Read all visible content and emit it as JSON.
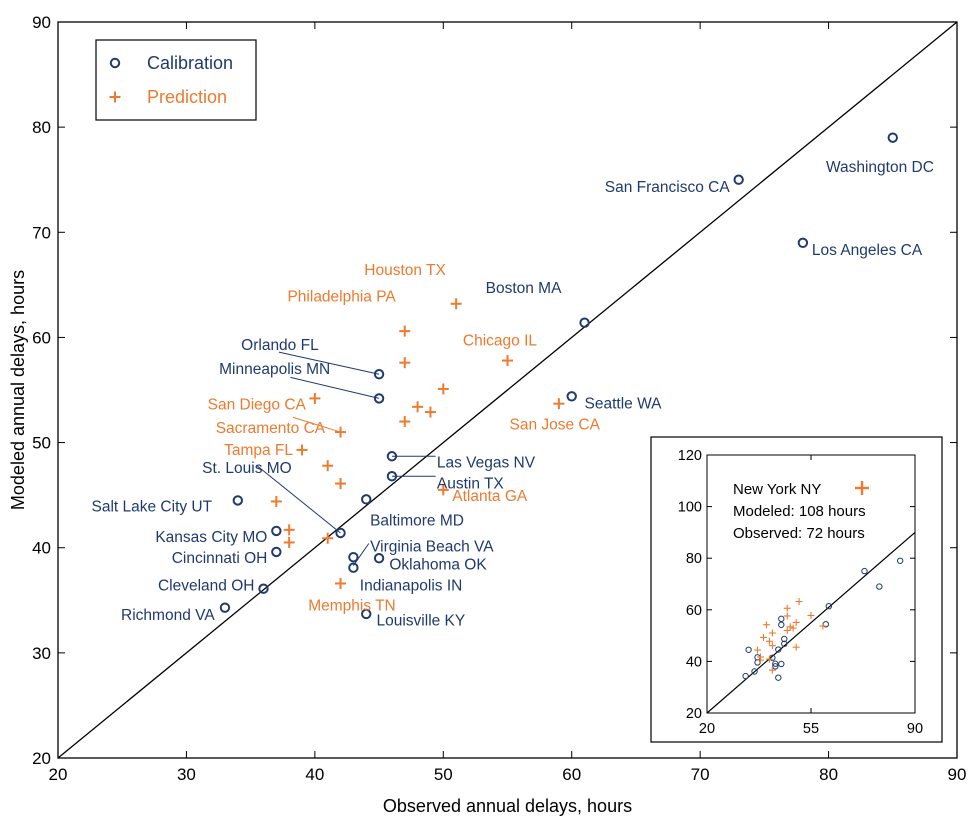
{
  "colors": {
    "calibration": "#1F3A6E",
    "prediction": "#EE7A2E",
    "axis": "#000000"
  },
  "chart_data": [
    {
      "type": "scatter",
      "xlabel": "Observed annual delays, hours",
      "ylabel": "Modeled annual delays, hours",
      "xlim": [
        20,
        90
      ],
      "ylim": [
        20,
        90
      ],
      "xticks": [
        "20",
        "30",
        "40",
        "50",
        "60",
        "70",
        "80",
        "90"
      ],
      "yticks": [
        "20",
        "30",
        "40",
        "50",
        "60",
        "70",
        "80",
        "90"
      ],
      "reference_line": "y = x",
      "legend": {
        "position": "top-left",
        "entries": [
          "Calibration",
          "Prediction"
        ]
      },
      "series": [
        {
          "name": "Calibration",
          "marker": "circle",
          "points": [
            {
              "label": "Washington DC",
              "x": 85,
              "y": 79
            },
            {
              "label": "San Francisco CA",
              "x": 73,
              "y": 75
            },
            {
              "label": "Los Angeles CA",
              "x": 78,
              "y": 69
            },
            {
              "label": "Boston MA",
              "x": 61,
              "y": 61.4
            },
            {
              "label": "Seattle WA",
              "x": 60,
              "y": 54.4
            },
            {
              "label": "Orlando FL",
              "x": 45,
              "y": 56.5
            },
            {
              "label": "Minneapolis MN",
              "x": 45,
              "y": 54.2
            },
            {
              "label": "Las Vegas NV",
              "x": 46,
              "y": 48.7
            },
            {
              "label": "Austin TX",
              "x": 46,
              "y": 46.8
            },
            {
              "label": "Baltimore MD",
              "x": 44,
              "y": 44.6
            },
            {
              "label": "Salt Lake City UT",
              "x": 34,
              "y": 44.5
            },
            {
              "label": "St. Louis MO",
              "x": 42,
              "y": 41.4
            },
            {
              "label": "Kansas City MO",
              "x": 37,
              "y": 41.6
            },
            {
              "label": "Cincinnati OH",
              "x": 37,
              "y": 39.6
            },
            {
              "label": "Virginia Beach VA",
              "x": 43,
              "y": 39.1
            },
            {
              "label": "Oklahoma OK",
              "x": 45,
              "y": 39
            },
            {
              "label": "Indianapolis IN",
              "x": 43,
              "y": 38.1
            },
            {
              "label": "Cleveland OH",
              "x": 36,
              "y": 36.1
            },
            {
              "label": "Richmond VA",
              "x": 33,
              "y": 34.3
            },
            {
              "label": "Louisville KY",
              "x": 44,
              "y": 33.7
            }
          ]
        },
        {
          "name": "Prediction",
          "marker": "plus",
          "points": [
            {
              "label": "Houston TX",
              "x": 51,
              "y": 63.2
            },
            {
              "label": "Philadelphia PA",
              "x": 47,
              "y": 60.6
            },
            {
              "label": "Chicago IL",
              "x": 55,
              "y": 57.8
            },
            {
              "label": "",
              "x": 47,
              "y": 57.6
            },
            {
              "label": "",
              "x": 50,
              "y": 55.1
            },
            {
              "label": "San Diego CA",
              "x": 40,
              "y": 54.2
            },
            {
              "label": "San Jose CA",
              "x": 59,
              "y": 53.7
            },
            {
              "label": "",
              "x": 48,
              "y": 53.4
            },
            {
              "label": "",
              "x": 49,
              "y": 52.9
            },
            {
              "label": "",
              "x": 47,
              "y": 52
            },
            {
              "label": "Sacramento CA",
              "x": 42,
              "y": 51
            },
            {
              "label": "Tampa FL",
              "x": 39,
              "y": 49.3
            },
            {
              "label": "",
              "x": 41,
              "y": 47.8
            },
            {
              "label": "",
              "x": 42,
              "y": 46.1
            },
            {
              "label": "Atlanta GA",
              "x": 50,
              "y": 45.5
            },
            {
              "label": "",
              "x": 37,
              "y": 44.4
            },
            {
              "label": "",
              "x": 38,
              "y": 41.7
            },
            {
              "label": "",
              "x": 41,
              "y": 40.9
            },
            {
              "label": "",
              "x": 38,
              "y": 40.5
            },
            {
              "label": "Memphis TN",
              "x": 42,
              "y": 36.6
            }
          ]
        }
      ],
      "annotations": [
        {
          "text": "Washington DC",
          "x": 84,
          "y": 76.2,
          "anchor": "middle",
          "series": "Calibration"
        },
        {
          "text": "San Francisco CA",
          "x": 72.3,
          "y": 74.3,
          "anchor": "end",
          "series": "Calibration"
        },
        {
          "text": "Los Angeles CA",
          "x": 78.7,
          "y": 68.3,
          "anchor": "start",
          "series": "Calibration"
        },
        {
          "text": "Boston MA",
          "x": 59.2,
          "y": 64.7,
          "anchor": "end",
          "series": "Calibration"
        },
        {
          "text": "Seattle WA",
          "x": 61,
          "y": 53.7,
          "anchor": "start",
          "series": "Calibration"
        },
        {
          "text": "Orlando FL",
          "x": 40.3,
          "y": 59.3,
          "anchor": "end",
          "series": "Calibration"
        },
        {
          "text": "Minneapolis MN",
          "x": 41.2,
          "y": 57,
          "anchor": "end",
          "series": "Calibration"
        },
        {
          "text": "Las Vegas NV",
          "x": 49.5,
          "y": 48.1,
          "anchor": "start",
          "series": "Calibration"
        },
        {
          "text": "Austin TX",
          "x": 49.5,
          "y": 46.1,
          "anchor": "start",
          "series": "Calibration"
        },
        {
          "text": "Baltimore MD",
          "x": 44.3,
          "y": 42.6,
          "anchor": "start",
          "series": "Calibration"
        },
        {
          "text": "Salt Lake City UT",
          "x": 32,
          "y": 43.9,
          "anchor": "end",
          "series": "Calibration"
        },
        {
          "text": "St. Louis MO",
          "x": 38.2,
          "y": 47.6,
          "anchor": "end",
          "series": "Calibration"
        },
        {
          "text": "Kansas City MO",
          "x": 36.3,
          "y": 41,
          "anchor": "end",
          "series": "Calibration"
        },
        {
          "text": "Cincinnati OH",
          "x": 36.3,
          "y": 39,
          "anchor": "end",
          "series": "Calibration"
        },
        {
          "text": "Virginia Beach VA",
          "x": 44.3,
          "y": 40.1,
          "anchor": "start",
          "series": "Calibration"
        },
        {
          "text": "Oklahoma OK",
          "x": 45.8,
          "y": 38.4,
          "anchor": "start",
          "series": "Calibration"
        },
        {
          "text": "Indianapolis IN",
          "x": 43.5,
          "y": 36.4,
          "anchor": "start",
          "series": "Calibration"
        },
        {
          "text": "Cleveland OH",
          "x": 35.3,
          "y": 36.4,
          "anchor": "end",
          "series": "Calibration"
        },
        {
          "text": "Richmond VA",
          "x": 32.2,
          "y": 33.6,
          "anchor": "end",
          "series": "Calibration"
        },
        {
          "text": "Louisville KY",
          "x": 44.8,
          "y": 33.1,
          "anchor": "start",
          "series": "Calibration"
        },
        {
          "text": "Houston TX",
          "x": 50.2,
          "y": 66.4,
          "anchor": "end",
          "series": "Prediction"
        },
        {
          "text": "Philadelphia PA",
          "x": 46.3,
          "y": 63.9,
          "anchor": "end",
          "series": "Prediction"
        },
        {
          "text": "Chicago IL",
          "x": 57.3,
          "y": 59.7,
          "anchor": "end",
          "series": "Prediction"
        },
        {
          "text": "San Diego CA",
          "x": 39.3,
          "y": 53.6,
          "anchor": "end",
          "series": "Prediction"
        },
        {
          "text": "San Jose CA",
          "x": 62.2,
          "y": 51.7,
          "anchor": "end",
          "series": "Prediction"
        },
        {
          "text": "Sacramento CA",
          "x": 40.8,
          "y": 51.4,
          "anchor": "end",
          "series": "Prediction"
        },
        {
          "text": "Tampa FL",
          "x": 38.3,
          "y": 49.3,
          "anchor": "end",
          "series": "Prediction"
        },
        {
          "text": "Atlanta GA",
          "x": 50.7,
          "y": 44.9,
          "anchor": "start",
          "series": "Prediction"
        },
        {
          "text": "Memphis TN",
          "x": 46.3,
          "y": 34.5,
          "anchor": "end",
          "series": "Prediction"
        }
      ],
      "leaders": [
        {
          "from": [
            37.2,
            58.6
          ],
          "to": [
            45,
            56.5
          ],
          "series": "Calibration"
        },
        {
          "from": [
            38.1,
            56.2
          ],
          "to": [
            45,
            54.2
          ],
          "series": "Calibration"
        },
        {
          "from": [
            49.4,
            48.7
          ],
          "to": [
            46,
            48.7
          ],
          "series": "Calibration"
        },
        {
          "from": [
            49.4,
            46.8
          ],
          "to": [
            46,
            46.8
          ],
          "series": "Calibration"
        },
        {
          "from": [
            35.5,
            47.8
          ],
          "to": [
            42,
            41.4
          ],
          "series": "Calibration"
        },
        {
          "from": [
            44.2,
            40.4
          ],
          "to": [
            43,
            38.3
          ],
          "series": "Calibration"
        },
        {
          "from": [
            38.3,
            52.4
          ],
          "to": [
            42,
            51
          ],
          "series": "Prediction"
        }
      ]
    },
    {
      "type": "scatter",
      "role": "inset",
      "xlim": [
        20,
        90
      ],
      "ylim": [
        20,
        120
      ],
      "xticks": [
        "20",
        "55",
        "90"
      ],
      "yticks": [
        "20",
        "40",
        "60",
        "80",
        "100",
        "120"
      ],
      "reference_line": "y = x",
      "legend_text": {
        "city": "New York NY",
        "modeled": "Modeled: 108 hours",
        "observed": "Observed: 72 hours"
      },
      "series": [
        {
          "name": "Calibration",
          "marker": "circle",
          "points": [
            {
              "x": 85,
              "y": 79
            },
            {
              "x": 73,
              "y": 75
            },
            {
              "x": 78,
              "y": 69
            },
            {
              "x": 61,
              "y": 61.4
            },
            {
              "x": 60,
              "y": 54.4
            },
            {
              "x": 45,
              "y": 56.5
            },
            {
              "x": 45,
              "y": 54.2
            },
            {
              "x": 46,
              "y": 48.7
            },
            {
              "x": 46,
              "y": 46.8
            },
            {
              "x": 44,
              "y": 44.6
            },
            {
              "x": 34,
              "y": 44.5
            },
            {
              "x": 42,
              "y": 41.4
            },
            {
              "x": 37,
              "y": 41.6
            },
            {
              "x": 37,
              "y": 39.6
            },
            {
              "x": 43,
              "y": 39.1
            },
            {
              "x": 45,
              "y": 39
            },
            {
              "x": 43,
              "y": 38.1
            },
            {
              "x": 36,
              "y": 36.1
            },
            {
              "x": 33,
              "y": 34.3
            },
            {
              "x": 44,
              "y": 33.7
            }
          ]
        },
        {
          "name": "Prediction",
          "marker": "plus",
          "points": [
            {
              "x": 51,
              "y": 63.2
            },
            {
              "x": 47,
              "y": 60.6
            },
            {
              "x": 55,
              "y": 57.8
            },
            {
              "x": 47,
              "y": 57.6
            },
            {
              "x": 50,
              "y": 55.1
            },
            {
              "x": 40,
              "y": 54.2
            },
            {
              "x": 59,
              "y": 53.7
            },
            {
              "x": 48,
              "y": 53.4
            },
            {
              "x": 49,
              "y": 52.9
            },
            {
              "x": 47,
              "y": 52
            },
            {
              "x": 42,
              "y": 51
            },
            {
              "x": 39,
              "y": 49.3
            },
            {
              "x": 41,
              "y": 47.8
            },
            {
              "x": 42,
              "y": 46.1
            },
            {
              "x": 50,
              "y": 45.5
            },
            {
              "x": 37,
              "y": 44.4
            },
            {
              "x": 38,
              "y": 41.7
            },
            {
              "x": 41,
              "y": 40.9
            },
            {
              "x": 38,
              "y": 40.5
            },
            {
              "x": 42,
              "y": 36.6
            }
          ]
        }
      ]
    }
  ]
}
